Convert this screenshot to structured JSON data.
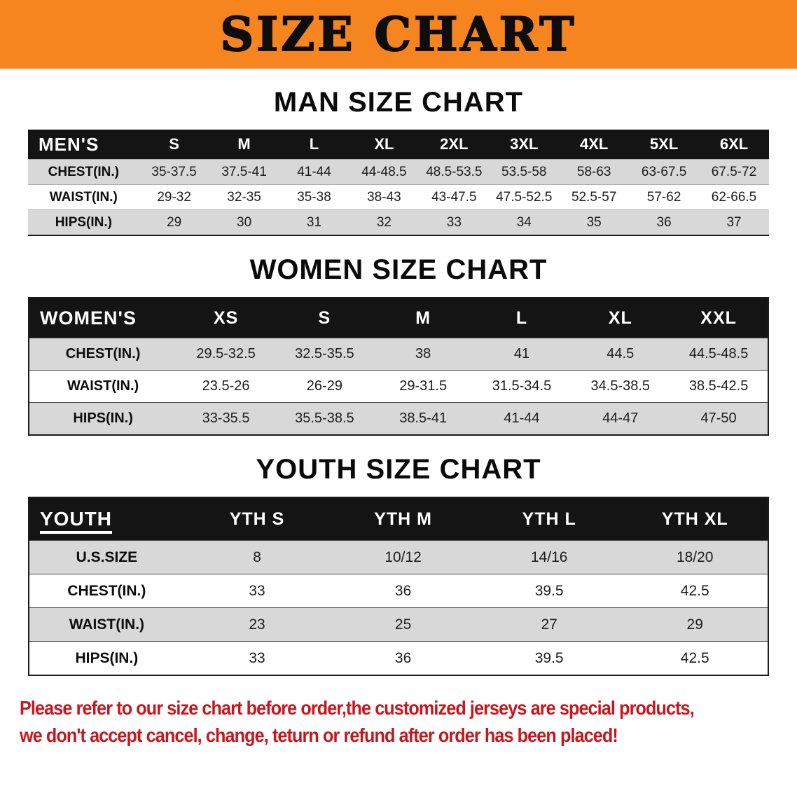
{
  "banner": {
    "title": "SIZE CHART"
  },
  "men": {
    "heading": "MAN SIZE CHART",
    "label": "MEN'S",
    "columns": [
      "S",
      "M",
      "L",
      "XL",
      "2XL",
      "3XL",
      "4XL",
      "5XL",
      "6XL"
    ],
    "rows": [
      {
        "label": "CHEST(IN.)",
        "values": [
          "35-37.5",
          "37.5-41",
          "41-44",
          "44-48.5",
          "48.5-53.5",
          "53.5-58",
          "58-63",
          "63-67.5",
          "67.5-72"
        ]
      },
      {
        "label": "WAIST(IN.)",
        "values": [
          "29-32",
          "32-35",
          "35-38",
          "38-43",
          "43-47.5",
          "47.5-52.5",
          "52.5-57",
          "57-62",
          "62-66.5"
        ]
      },
      {
        "label": "HIPS(IN.)",
        "values": [
          "29",
          "30",
          "31",
          "32",
          "33",
          "34",
          "35",
          "36",
          "37"
        ]
      }
    ]
  },
  "women": {
    "heading": "WOMEN SIZE CHART",
    "label": "WOMEN'S",
    "columns": [
      "XS",
      "S",
      "M",
      "L",
      "XL",
      "XXL"
    ],
    "rows": [
      {
        "label": "CHEST(IN.)",
        "values": [
          "29.5-32.5",
          "32.5-35.5",
          "38",
          "41",
          "44.5",
          "44.5-48.5"
        ]
      },
      {
        "label": "WAIST(IN.)",
        "values": [
          "23.5-26",
          "26-29",
          "29-31.5",
          "31.5-34.5",
          "34.5-38.5",
          "38.5-42.5"
        ]
      },
      {
        "label": "HIPS(IN.)",
        "values": [
          "33-35.5",
          "35.5-38.5",
          "38.5-41",
          "41-44",
          "44-47",
          "47-50"
        ]
      }
    ]
  },
  "youth": {
    "heading": "YOUTH SIZE CHART",
    "label": "YOUTH",
    "columns": [
      "YTH S",
      "YTH M",
      "YTH L",
      "YTH XL"
    ],
    "rows": [
      {
        "label": "U.S.SIZE",
        "values": [
          "8",
          "10/12",
          "14/16",
          "18/20"
        ]
      },
      {
        "label": "CHEST(IN.)",
        "values": [
          "33",
          "36",
          "39.5",
          "42.5"
        ]
      },
      {
        "label": "WAIST(IN.)",
        "values": [
          "23",
          "25",
          "27",
          "29"
        ]
      },
      {
        "label": "HIPS(IN.)",
        "values": [
          "33",
          "36",
          "39.5",
          "42.5"
        ]
      }
    ]
  },
  "footer": {
    "line1": "Please refer to our size chart before order,the customized jerseys are special products,",
    "line2": "we don't accept cancel, change, teturn or refund after order has been placed!"
  },
  "colors": {
    "banner_orange": "#f6851f",
    "header_black": "#141414",
    "row_gray": "#d8d8d8",
    "footer_red": "#c9151b"
  }
}
